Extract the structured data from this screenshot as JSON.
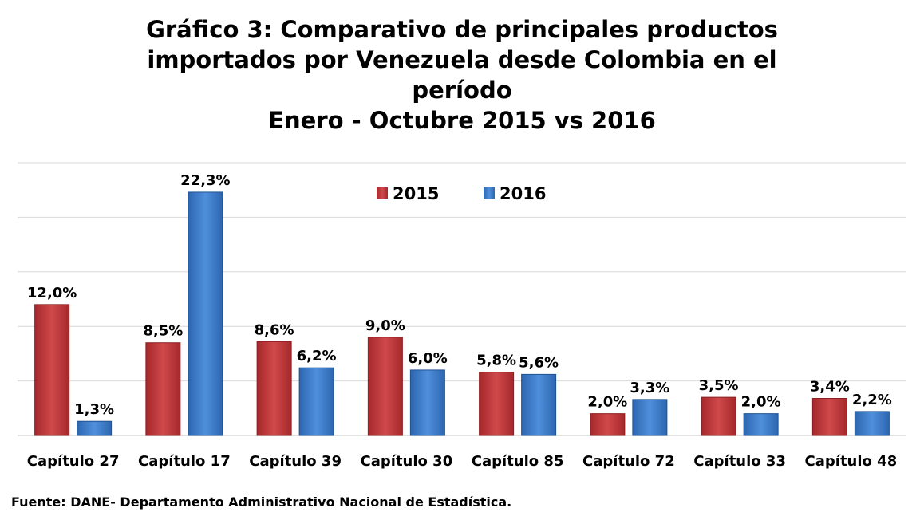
{
  "title_lines": [
    "Gráfico 3: Comparativo de principales productos",
    "importados por Venezuela desde Colombia en el",
    "período",
    "Enero - Octubre 2015 vs 2016"
  ],
  "source": "Fuente: DANE- Departamento Administrativo Nacional de Estadística.",
  "colors": {
    "s2015": "#c0393b",
    "s2015_dark": "#8c1f22",
    "s2016": "#3f7fcc",
    "s2016_dark": "#20528f",
    "grid": "#d9d9d9"
  },
  "chart_data": {
    "type": "bar",
    "title": "Gráfico 3: Comparativo de principales productos importados por Venezuela desde Colombia en el período Enero - Octubre 2015 vs 2016",
    "categories": [
      "Capítulo 27",
      "Capítulo 17",
      "Capítulo 39",
      "Capítulo 30",
      "Capítulo 85",
      "Capítulo 72",
      "Capítulo 33",
      "Capítulo 48"
    ],
    "series": [
      {
        "name": "2015",
        "values": [
          12.0,
          8.5,
          8.6,
          9.0,
          5.8,
          2.0,
          3.5,
          3.4
        ],
        "labels": [
          "12,0%",
          "8,5%",
          "8,6%",
          "9,0%",
          "5,8%",
          "2,0%",
          "3,5%",
          "3,4%"
        ]
      },
      {
        "name": "2016",
        "values": [
          1.3,
          22.3,
          6.2,
          6.0,
          5.6,
          3.3,
          2.0,
          2.2
        ],
        "labels": [
          "1,3%",
          "22,3%",
          "6,2%",
          "6,0%",
          "5,6%",
          "3,3%",
          "2,0%",
          "2,2%"
        ]
      }
    ],
    "ylim": [
      0,
      25
    ],
    "grid": true,
    "legend": "top-center",
    "xlabel": "",
    "ylabel": ""
  }
}
